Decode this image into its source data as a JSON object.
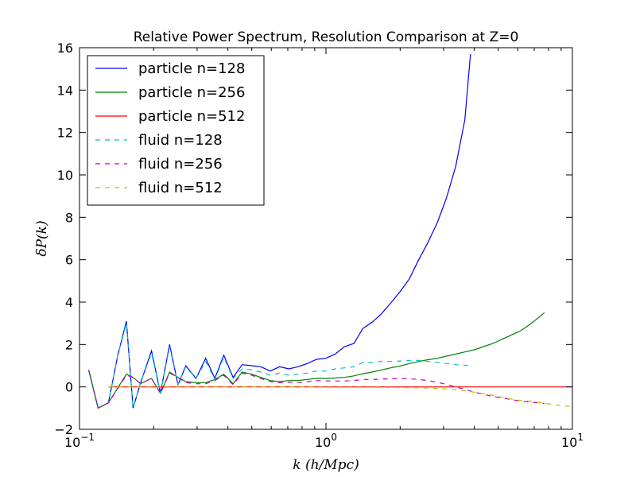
{
  "chart_data": {
    "type": "line",
    "title": "Relative Power Spectrum, Resolution Comparison at Z=0",
    "xlabel": "k (h/Mpc)",
    "ylabel": "δP(k)",
    "xscale": "log",
    "xlim": [
      0.1,
      10
    ],
    "ylim": [
      -2,
      16
    ],
    "xticks": [
      {
        "value": 0.1,
        "base": "10",
        "exp": "−1"
      },
      {
        "value": 1,
        "base": "10",
        "exp": "0"
      },
      {
        "value": 10,
        "base": "10",
        "exp": "1"
      }
    ],
    "yticks": [
      -2,
      0,
      2,
      4,
      6,
      8,
      10,
      12,
      14,
      16
    ],
    "grid": false,
    "legend_position": "top-left",
    "series": [
      {
        "name": "particle n=128",
        "color": "#0000ff",
        "style": "solid",
        "x": [
          0.109,
          0.119,
          0.131,
          0.143,
          0.155,
          0.165,
          0.177,
          0.196,
          0.213,
          0.232,
          0.251,
          0.27,
          0.297,
          0.325,
          0.354,
          0.385,
          0.42,
          0.457,
          0.5,
          0.544,
          0.594,
          0.648,
          0.707,
          0.77,
          0.84,
          0.916,
          1.0,
          1.09,
          1.19,
          1.3,
          1.41,
          1.54,
          1.68,
          1.83,
          2.0,
          2.18,
          2.38,
          2.59,
          2.83,
          3.08,
          3.36,
          3.66,
          3.86
        ],
        "y": [
          0.8,
          -1.0,
          -0.75,
          1.5,
          3.1,
          -1.0,
          0.2,
          1.7,
          -0.3,
          2.0,
          0.1,
          1.0,
          0.4,
          1.35,
          0.4,
          1.5,
          0.45,
          1.05,
          1.0,
          0.95,
          0.75,
          0.95,
          0.85,
          0.95,
          1.1,
          1.3,
          1.35,
          1.55,
          1.9,
          2.05,
          2.75,
          3.05,
          3.45,
          3.95,
          4.5,
          5.1,
          6.0,
          6.8,
          7.75,
          8.9,
          10.4,
          12.6,
          15.7
        ]
      },
      {
        "name": "particle n=256",
        "color": "#008000",
        "style": "solid",
        "x": [
          0.109,
          0.119,
          0.131,
          0.155,
          0.165,
          0.177,
          0.196,
          0.213,
          0.232,
          0.251,
          0.27,
          0.297,
          0.325,
          0.354,
          0.385,
          0.42,
          0.457,
          0.5,
          0.544,
          0.594,
          0.648,
          0.707,
          0.77,
          0.84,
          0.916,
          1.0,
          1.09,
          1.19,
          1.3,
          1.41,
          1.54,
          1.68,
          1.83,
          2.0,
          2.18,
          2.38,
          2.59,
          2.83,
          3.08,
          3.36,
          3.66,
          4.0,
          4.36,
          4.76,
          5.19,
          5.66,
          6.17,
          6.73,
          7.34,
          7.7
        ],
        "y": [
          0.8,
          -1.0,
          -0.75,
          0.6,
          0.45,
          0.15,
          0.4,
          -0.3,
          0.7,
          0.45,
          0.25,
          0.2,
          0.2,
          0.35,
          0.6,
          0.15,
          0.7,
          0.6,
          0.45,
          0.3,
          0.25,
          0.3,
          0.3,
          0.35,
          0.4,
          0.4,
          0.42,
          0.45,
          0.52,
          0.62,
          0.7,
          0.8,
          0.9,
          0.98,
          1.1,
          1.2,
          1.28,
          1.35,
          1.45,
          1.55,
          1.65,
          1.75,
          1.9,
          2.05,
          2.25,
          2.45,
          2.65,
          2.95,
          3.3,
          3.5
        ]
      },
      {
        "name": "particle n=512",
        "color": "#ff0000",
        "style": "solid",
        "x": [
          0.131,
          0.143,
          0.155,
          10
        ],
        "y": [
          0.0,
          0.0,
          0.0,
          0.0
        ]
      },
      {
        "name": "fluid n=128",
        "color": "#00bfbf",
        "style": "dashed",
        "x": [
          0.109,
          0.119,
          0.131,
          0.143,
          0.155,
          0.165,
          0.177,
          0.196,
          0.213,
          0.232,
          0.251,
          0.27,
          0.297,
          0.325,
          0.354,
          0.385,
          0.42,
          0.457,
          0.5,
          0.544,
          0.594,
          0.648,
          0.707,
          0.77,
          0.84,
          0.916,
          1.0,
          1.09,
          1.19,
          1.3,
          1.41,
          1.54,
          1.68,
          1.83,
          2.0,
          2.18,
          2.38,
          2.59,
          2.83,
          3.08,
          3.36,
          3.66,
          3.86
        ],
        "y": [
          0.8,
          -1.0,
          -0.75,
          1.5,
          3.0,
          -1.0,
          0.2,
          1.6,
          -0.3,
          1.9,
          0.1,
          0.95,
          0.4,
          1.2,
          0.35,
          1.4,
          0.4,
          0.85,
          0.8,
          0.7,
          0.55,
          0.65,
          0.55,
          0.6,
          0.65,
          0.75,
          0.75,
          0.85,
          0.9,
          0.95,
          1.15,
          1.15,
          1.2,
          1.2,
          1.22,
          1.25,
          1.25,
          1.2,
          1.15,
          1.1,
          1.05,
          1.02,
          1.0
        ]
      },
      {
        "name": "fluid n=256",
        "color": "#bf00bf",
        "style": "dashed",
        "x": [
          0.109,
          0.119,
          0.131,
          0.155,
          0.165,
          0.177,
          0.196,
          0.213,
          0.232,
          0.251,
          0.27,
          0.297,
          0.325,
          0.354,
          0.385,
          0.42,
          0.457,
          0.5,
          0.544,
          0.594,
          0.648,
          0.707,
          0.77,
          0.84,
          0.916,
          1.0,
          1.09,
          1.19,
          1.3,
          1.41,
          1.54,
          1.68,
          1.83,
          2.0,
          2.18,
          2.38,
          2.59,
          2.83,
          3.08,
          3.36,
          3.66,
          4.0,
          4.36,
          4.76,
          5.19,
          5.66,
          6.17,
          6.73,
          7.34,
          7.7
        ],
        "y": [
          0.8,
          -1.0,
          -0.75,
          0.55,
          0.45,
          0.15,
          0.4,
          -0.3,
          0.65,
          0.45,
          0.2,
          0.15,
          0.15,
          0.3,
          0.55,
          0.1,
          0.65,
          0.55,
          0.4,
          0.25,
          0.2,
          0.22,
          0.2,
          0.25,
          0.3,
          0.28,
          0.28,
          0.28,
          0.3,
          0.35,
          0.35,
          0.37,
          0.38,
          0.4,
          0.38,
          0.35,
          0.3,
          0.22,
          0.12,
          0.0,
          -0.12,
          -0.25,
          -0.35,
          -0.45,
          -0.52,
          -0.6,
          -0.67,
          -0.72,
          -0.75,
          -0.78
        ]
      },
      {
        "name": "fluid n=512",
        "color": "#bfbf00",
        "style": "dashed",
        "x": [
          0.131,
          0.155,
          0.2,
          0.3,
          0.5,
          0.8,
          1.0,
          1.5,
          2.0,
          2.5,
          3.0,
          3.5,
          4.0,
          4.5,
          5.0,
          5.5,
          6.0,
          7.0,
          8.0,
          9.0,
          10.0
        ],
        "y": [
          0.0,
          0.0,
          -0.02,
          -0.01,
          0.0,
          0.0,
          -0.02,
          -0.02,
          -0.03,
          -0.05,
          -0.08,
          -0.15,
          -0.25,
          -0.35,
          -0.45,
          -0.55,
          -0.62,
          -0.7,
          -0.8,
          -0.88,
          -0.92
        ]
      }
    ]
  }
}
